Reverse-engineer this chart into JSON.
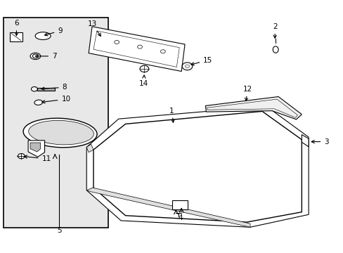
{
  "bg_color": "#ffffff",
  "box_bg": "#e8e8e8",
  "line_color": "#000000",
  "fig_width": 4.89,
  "fig_height": 3.6,
  "dpi": 100
}
